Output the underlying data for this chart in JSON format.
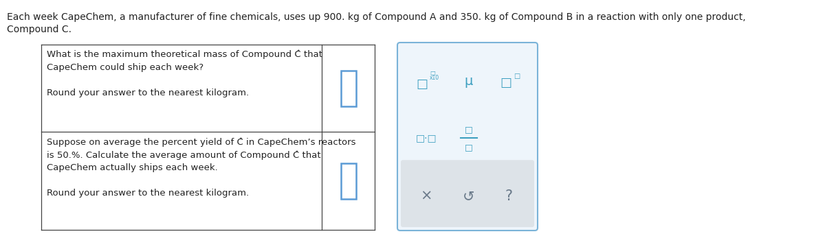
{
  "background_color": "#ffffff",
  "header_line1": "Each week CapeChem, a manufacturer of fine chemicals, uses up 900. kg of Compound A and 350. kg of Compound B in a reaction with only one product,",
  "header_line2": "Compound C.",
  "q1": "What is the maximum theoretical mass of Compound Ĉ that\nCapeChem could ship each week?\n\nRound your answer to the nearest kilogram.",
  "q2": "Suppose on average the percent yield of Ĉ in CapeChem’s reactors\nis 50.%. Calculate the average amount of Compound Ĉ that\nCapeChem actually ships each week.\n\nRound your answer to the nearest kilogram.",
  "table_color": "#444444",
  "input_box_color": "#5b9bd5",
  "panel_face": "#eef5fb",
  "panel_border": "#7ab3d8",
  "symbol_color": "#3d9fc0",
  "gray_panel": "#dde3e8",
  "bottom_sym_color": "#6a7a8a",
  "font_size_header": 10.0,
  "font_size_q": 9.5
}
